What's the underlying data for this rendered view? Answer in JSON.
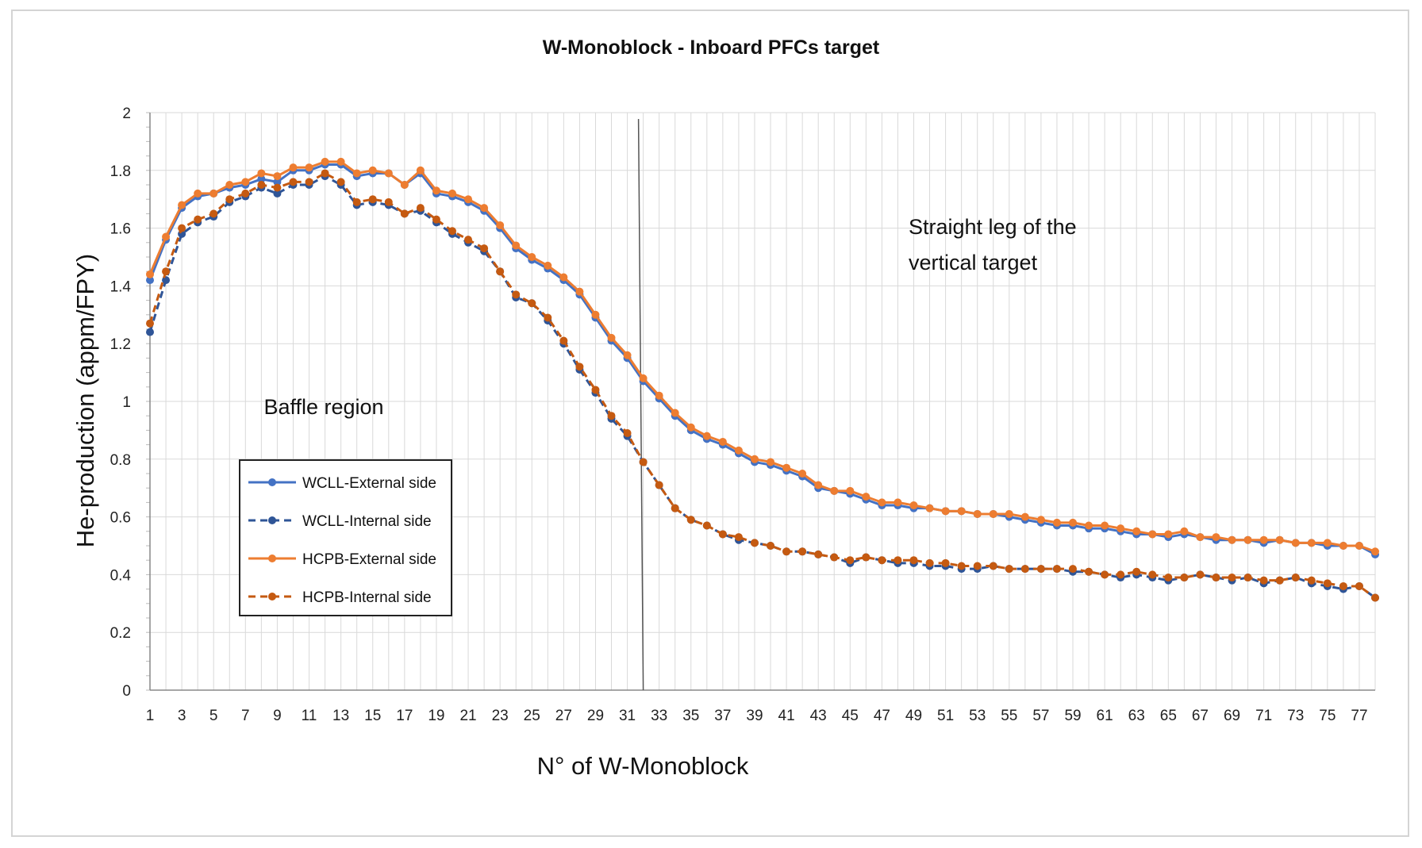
{
  "chart_data": {
    "type": "line",
    "title": "W-Monoblock - Inboard PFCs target",
    "xlabel": "N° of W-Monoblock",
    "ylabel": "He-production (appm/FPY)",
    "xlim": [
      1,
      78
    ],
    "ylim": [
      0,
      2
    ],
    "yticks": [
      "0",
      "0.2",
      "0.4",
      "0.6",
      "0.8",
      "1",
      "1.2",
      "1.4",
      "1.6",
      "1.8",
      "2"
    ],
    "xticks": [
      "1",
      "3",
      "5",
      "7",
      "9",
      "11",
      "13",
      "15",
      "17",
      "19",
      "21",
      "23",
      "25",
      "27",
      "29",
      "31",
      "33",
      "35",
      "37",
      "39",
      "41",
      "43",
      "45",
      "47",
      "49",
      "51",
      "53",
      "55",
      "57",
      "59",
      "61",
      "63",
      "65",
      "67",
      "69",
      "71",
      "73",
      "75",
      "77"
    ],
    "grid": true,
    "legend_position": "left-middle",
    "annotations": [
      "Baffle region",
      "Straight leg of the",
      "vertical target"
    ],
    "separator_x": 32,
    "x": [
      1,
      2,
      3,
      4,
      5,
      6,
      7,
      8,
      9,
      10,
      11,
      12,
      13,
      14,
      15,
      16,
      17,
      18,
      19,
      20,
      21,
      22,
      23,
      24,
      25,
      26,
      27,
      28,
      29,
      30,
      31,
      32,
      33,
      34,
      35,
      36,
      37,
      38,
      39,
      40,
      41,
      42,
      43,
      44,
      45,
      46,
      47,
      48,
      49,
      50,
      51,
      52,
      53,
      54,
      55,
      56,
      57,
      58,
      59,
      60,
      61,
      62,
      63,
      64,
      65,
      66,
      67,
      68,
      69,
      70,
      71,
      72,
      73,
      74,
      75,
      76,
      77,
      78
    ],
    "series": [
      {
        "name": "WCLL-External side",
        "color": "#4472c4",
        "dashed": false,
        "values": [
          1.42,
          1.56,
          1.67,
          1.71,
          1.72,
          1.74,
          1.75,
          1.77,
          1.76,
          1.8,
          1.8,
          1.82,
          1.82,
          1.78,
          1.79,
          1.79,
          1.75,
          1.79,
          1.72,
          1.71,
          1.69,
          1.66,
          1.6,
          1.53,
          1.49,
          1.46,
          1.42,
          1.37,
          1.29,
          1.21,
          1.15,
          1.07,
          1.01,
          0.95,
          0.9,
          0.87,
          0.85,
          0.82,
          0.79,
          0.78,
          0.76,
          0.74,
          0.7,
          0.69,
          0.68,
          0.66,
          0.64,
          0.64,
          0.63,
          0.63,
          0.62,
          0.62,
          0.61,
          0.61,
          0.6,
          0.59,
          0.58,
          0.57,
          0.57,
          0.56,
          0.56,
          0.55,
          0.54,
          0.54,
          0.53,
          0.54,
          0.53,
          0.52,
          0.52,
          0.52,
          0.51,
          0.52,
          0.51,
          0.51,
          0.5,
          0.5,
          0.5,
          0.47
        ]
      },
      {
        "name": "WCLL-Internal side",
        "color": "#2f5597",
        "dashed": true,
        "values": [
          1.24,
          1.42,
          1.58,
          1.62,
          1.64,
          1.69,
          1.71,
          1.74,
          1.72,
          1.75,
          1.75,
          1.78,
          1.75,
          1.68,
          1.69,
          1.68,
          1.65,
          1.66,
          1.62,
          1.58,
          1.55,
          1.52,
          1.45,
          1.36,
          1.34,
          1.28,
          1.2,
          1.11,
          1.03,
          0.94,
          0.88,
          0.79,
          0.71,
          0.63,
          0.59,
          0.57,
          0.54,
          0.52,
          0.51,
          0.5,
          0.48,
          0.48,
          0.47,
          0.46,
          0.44,
          0.46,
          0.45,
          0.44,
          0.44,
          0.43,
          0.43,
          0.42,
          0.42,
          0.43,
          0.42,
          0.42,
          0.42,
          0.42,
          0.41,
          0.41,
          0.4,
          0.39,
          0.4,
          0.39,
          0.38,
          0.39,
          0.4,
          0.39,
          0.38,
          0.39,
          0.37,
          0.38,
          0.39,
          0.37,
          0.36,
          0.35,
          0.36,
          0.32
        ]
      },
      {
        "name": "HCPB-External side",
        "color": "#ed7d31",
        "dashed": false,
        "values": [
          1.44,
          1.57,
          1.68,
          1.72,
          1.72,
          1.75,
          1.76,
          1.79,
          1.78,
          1.81,
          1.81,
          1.83,
          1.83,
          1.79,
          1.8,
          1.79,
          1.75,
          1.8,
          1.73,
          1.72,
          1.7,
          1.67,
          1.61,
          1.54,
          1.5,
          1.47,
          1.43,
          1.38,
          1.3,
          1.22,
          1.16,
          1.08,
          1.02,
          0.96,
          0.91,
          0.88,
          0.86,
          0.83,
          0.8,
          0.79,
          0.77,
          0.75,
          0.71,
          0.69,
          0.69,
          0.67,
          0.65,
          0.65,
          0.64,
          0.63,
          0.62,
          0.62,
          0.61,
          0.61,
          0.61,
          0.6,
          0.59,
          0.58,
          0.58,
          0.57,
          0.57,
          0.56,
          0.55,
          0.54,
          0.54,
          0.55,
          0.53,
          0.53,
          0.52,
          0.52,
          0.52,
          0.52,
          0.51,
          0.51,
          0.51,
          0.5,
          0.5,
          0.48
        ]
      },
      {
        "name": "HCPB-Internal side",
        "color": "#c55a11",
        "dashed": true,
        "values": [
          1.27,
          1.45,
          1.6,
          1.63,
          1.65,
          1.7,
          1.72,
          1.75,
          1.74,
          1.76,
          1.76,
          1.79,
          1.76,
          1.69,
          1.7,
          1.69,
          1.65,
          1.67,
          1.63,
          1.59,
          1.56,
          1.53,
          1.45,
          1.37,
          1.34,
          1.29,
          1.21,
          1.12,
          1.04,
          0.95,
          0.89,
          0.79,
          0.71,
          0.63,
          0.59,
          0.57,
          0.54,
          0.53,
          0.51,
          0.5,
          0.48,
          0.48,
          0.47,
          0.46,
          0.45,
          0.46,
          0.45,
          0.45,
          0.45,
          0.44,
          0.44,
          0.43,
          0.43,
          0.43,
          0.42,
          0.42,
          0.42,
          0.42,
          0.42,
          0.41,
          0.4,
          0.4,
          0.41,
          0.4,
          0.39,
          0.39,
          0.4,
          0.39,
          0.39,
          0.39,
          0.38,
          0.38,
          0.39,
          0.38,
          0.37,
          0.36,
          0.36,
          0.32
        ]
      }
    ]
  }
}
